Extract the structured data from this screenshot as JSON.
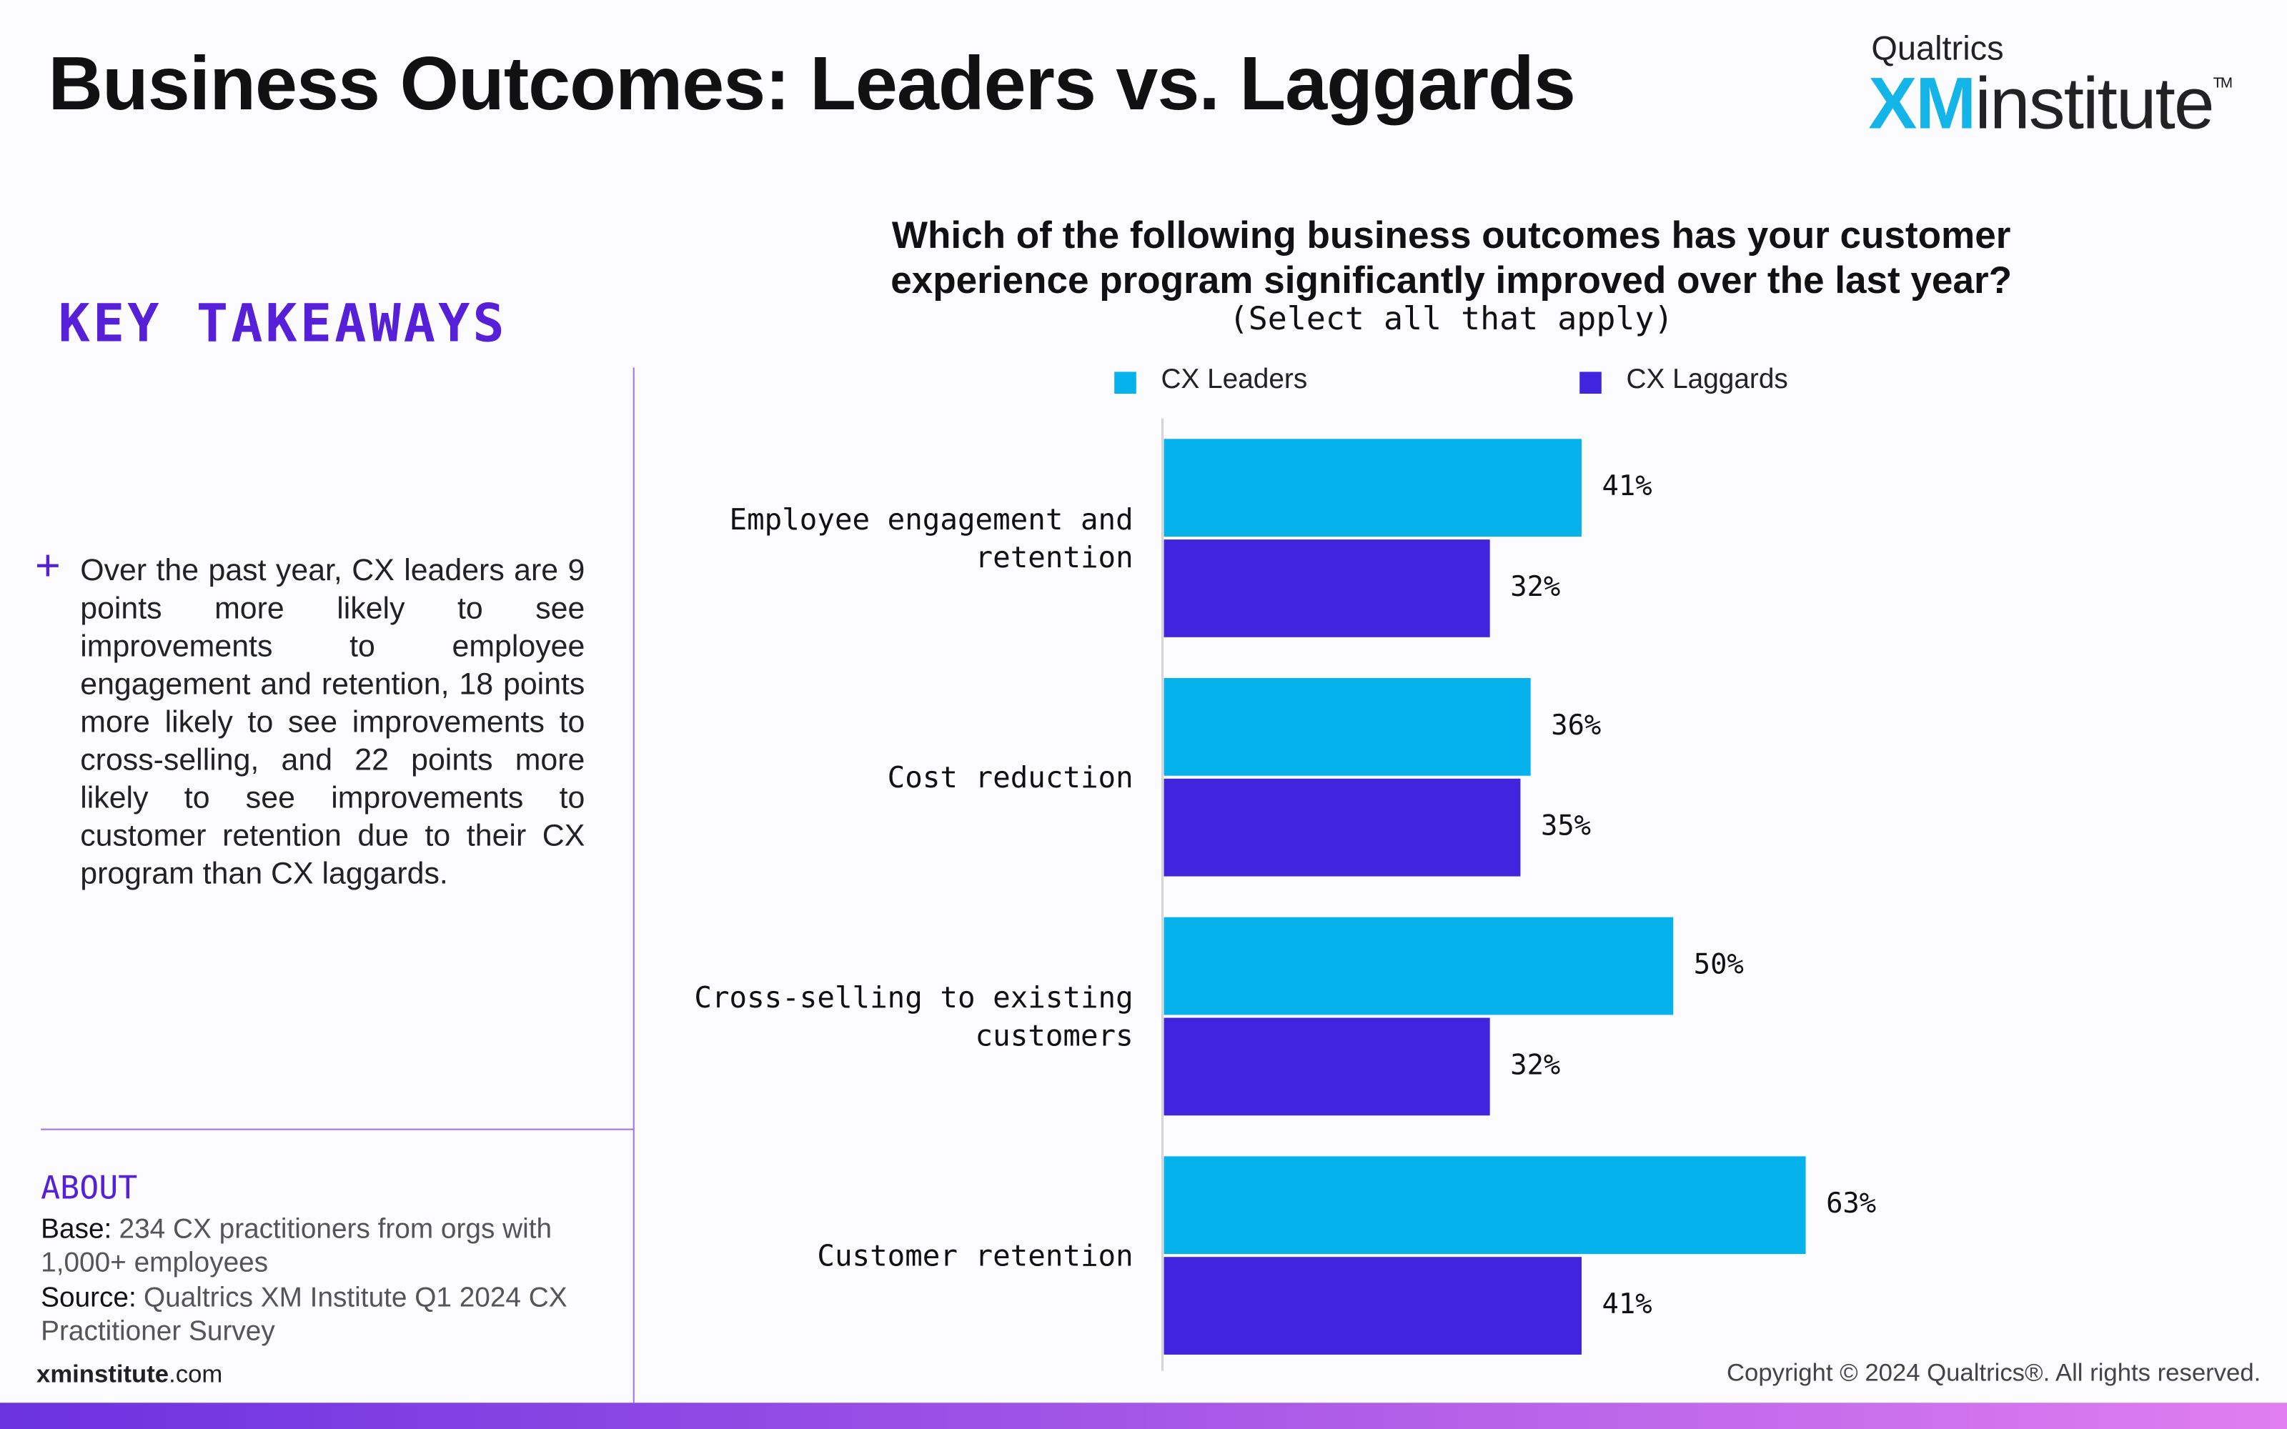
{
  "header": {
    "title": "Business Outcomes: Leaders vs. Laggards",
    "logo_top": "Qualtrics",
    "logo_xm": "XM",
    "logo_institute": "institute",
    "logo_tm": "TM"
  },
  "takeaways": {
    "heading": "KEY TAKEAWAYS",
    "bullet": "+",
    "text": "Over the past year, CX leaders are 9 points more likely to see improvements to employee engagement and retention, 18 points more likely to see improvements to cross-selling, and 22 points more likely to see improvements to customer retention due to their CX program than CX laggards."
  },
  "about": {
    "heading": "ABOUT",
    "base_label": "Base:",
    "base": "234 CX practitioners from orgs with 1,000+ employees",
    "source_label": "Source:",
    "source": "Qualtrics XM Institute Q1 2024 CX Practitioner Survey"
  },
  "footer": {
    "site_bold": "xminstitute",
    "site_rest": ".com",
    "copyright": "Copyright © 2024 Qualtrics®. All rights reserved."
  },
  "chart_data": {
    "type": "hbar",
    "title": "Which of the following business outcomes has your customer experience program significantly improved over the last year?",
    "subtitle": "(Select all that apply)",
    "categories": [
      "Employee engagement and retention",
      "Cost reduction",
      "Cross-selling to existing customers",
      "Customer retention"
    ],
    "series": [
      {
        "name": "CX Leaders",
        "color": "#05b2ec",
        "values": [
          41,
          36,
          50,
          63
        ],
        "value_labels": [
          "41%",
          "36%",
          "50%",
          "63%"
        ]
      },
      {
        "name": "CX Laggards",
        "color": "#4124de",
        "values": [
          32,
          35,
          32,
          41
        ],
        "value_labels": [
          "32%",
          "35%",
          "32%",
          "41%"
        ]
      }
    ]
  }
}
